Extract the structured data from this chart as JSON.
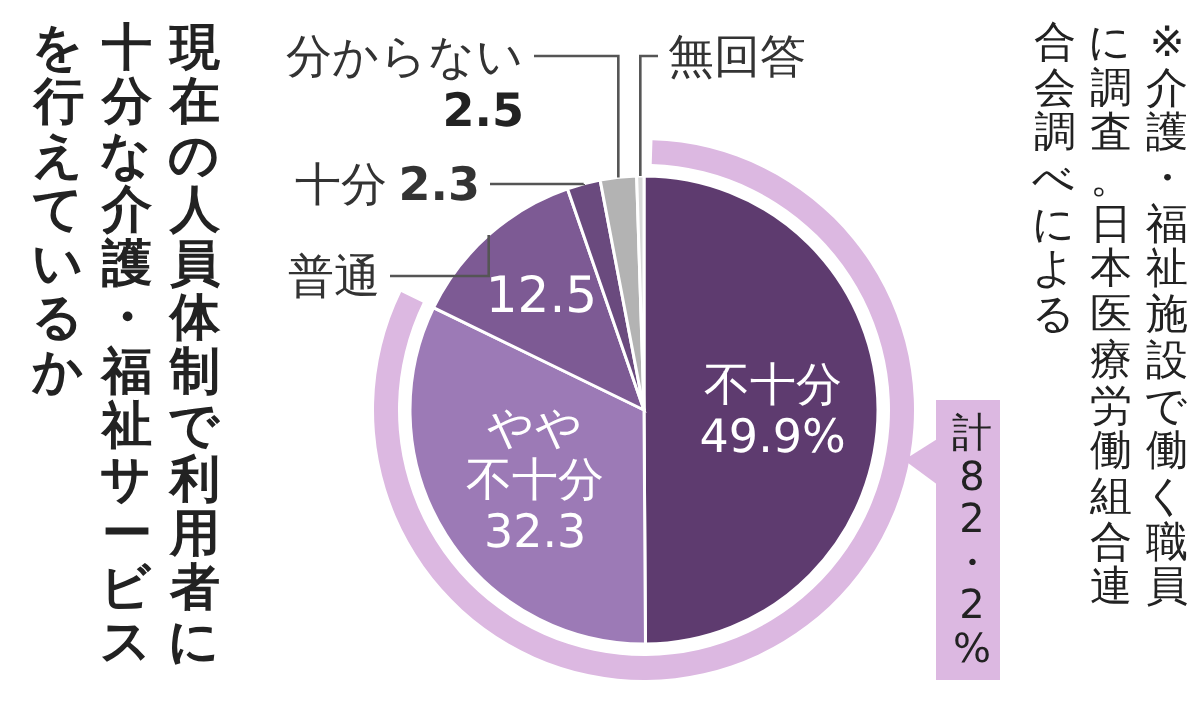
{
  "chart_data": {
    "type": "pie",
    "title": "現在の人員体制で利用者に十分な介護・福祉サービスを行えているか",
    "categories": [
      "不十分",
      "やや不十分",
      "普通",
      "十分",
      "分からない",
      "無回答"
    ],
    "values": [
      49.9,
      32.3,
      12.5,
      2.3,
      2.5,
      0.5
    ],
    "colors": [
      "#5e3b6f",
      "#9c7ab6",
      "#7d5a94",
      "#6a4a7e",
      "#b3b3b3",
      "#d9d9d9"
    ],
    "value_labels": [
      "49.9%",
      "32.3",
      "12.5",
      "2.3",
      "2.5",
      null
    ],
    "annotations": [
      "計82・2%",
      "※介護・福祉施設で働く職員に調査。日本医療労働組合連合会調べによる"
    ]
  }
}
